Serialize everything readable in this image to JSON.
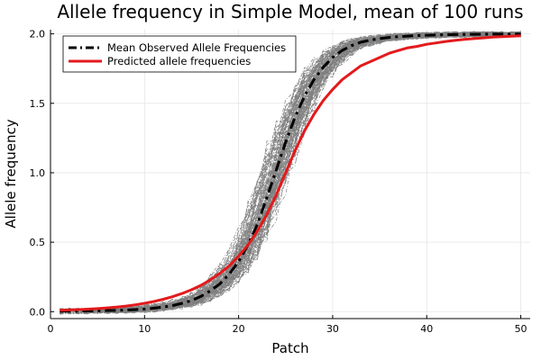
{
  "chart_data": {
    "type": "line",
    "title": "Allele frequency in Simple Model, mean of 100 runs",
    "xlabel": "Patch",
    "ylabel": "Allele frequency",
    "xlim": [
      0,
      51
    ],
    "ylim": [
      -0.05,
      2.03
    ],
    "xticks": [
      0,
      10,
      20,
      30,
      40,
      50
    ],
    "yticks": [
      0.0,
      0.5,
      1.0,
      1.5,
      2.0
    ],
    "xtick_labels": [
      "0",
      "10",
      "20",
      "30",
      "40",
      "50"
    ],
    "ytick_labels": [
      "0.0",
      "0.5",
      "1.0",
      "1.5",
      "2.0"
    ],
    "grid": true,
    "legend_position": "top-left",
    "series": [
      {
        "name": "Mean Observed Allele Frequencies",
        "color": "#000000",
        "style": "dash-dot",
        "x": [
          1,
          2,
          3,
          4,
          5,
          6,
          7,
          8,
          9,
          10,
          11,
          12,
          13,
          14,
          15,
          16,
          17,
          18,
          19,
          20,
          21,
          22,
          23,
          24,
          25,
          26,
          27,
          28,
          29,
          30,
          31,
          32,
          33,
          34,
          35,
          36,
          37,
          38,
          39,
          40,
          41,
          42,
          43,
          44,
          45,
          46,
          47,
          48,
          49,
          50
        ],
        "y": [
          0.003,
          0.003,
          0.004,
          0.005,
          0.006,
          0.008,
          0.009,
          0.012,
          0.015,
          0.019,
          0.025,
          0.033,
          0.044,
          0.06,
          0.08,
          0.11,
          0.15,
          0.2,
          0.27,
          0.36,
          0.48,
          0.63,
          0.82,
          1.02,
          1.22,
          1.4,
          1.55,
          1.67,
          1.76,
          1.83,
          1.88,
          1.915,
          1.94,
          1.955,
          1.966,
          1.974,
          1.98,
          1.984,
          1.988,
          1.99,
          1.992,
          1.994,
          1.995,
          1.996,
          1.997,
          1.997,
          1.998,
          1.998,
          1.998,
          1.998
        ]
      },
      {
        "name": "Predicted allele frequencies",
        "color": "#e31a1c",
        "style": "solid",
        "x": [
          1,
          2,
          3,
          4,
          5,
          6,
          7,
          8,
          9,
          10,
          11,
          12,
          13,
          14,
          15,
          16,
          17,
          18,
          19,
          20,
          21,
          22,
          23,
          24,
          25,
          26,
          27,
          28,
          29,
          30,
          31,
          32,
          33,
          34,
          35,
          36,
          37,
          38,
          39,
          40,
          41,
          42,
          43,
          44,
          45,
          46,
          47,
          48,
          49,
          50
        ],
        "y": [
          0.01,
          0.012,
          0.015,
          0.018,
          0.022,
          0.027,
          0.033,
          0.04,
          0.049,
          0.06,
          0.073,
          0.089,
          0.108,
          0.131,
          0.158,
          0.19,
          0.229,
          0.275,
          0.33,
          0.4,
          0.48,
          0.58,
          0.7,
          0.84,
          1.0,
          1.16,
          1.3,
          1.42,
          1.52,
          1.6,
          1.67,
          1.72,
          1.77,
          1.8,
          1.83,
          1.86,
          1.88,
          1.9,
          1.91,
          1.925,
          1.935,
          1.945,
          1.953,
          1.96,
          1.966,
          1.971,
          1.976,
          1.98,
          1.983,
          1.986
        ]
      }
    ],
    "background_runs": {
      "count": 100,
      "color": "#808080",
      "style": "dash-dot"
    }
  }
}
